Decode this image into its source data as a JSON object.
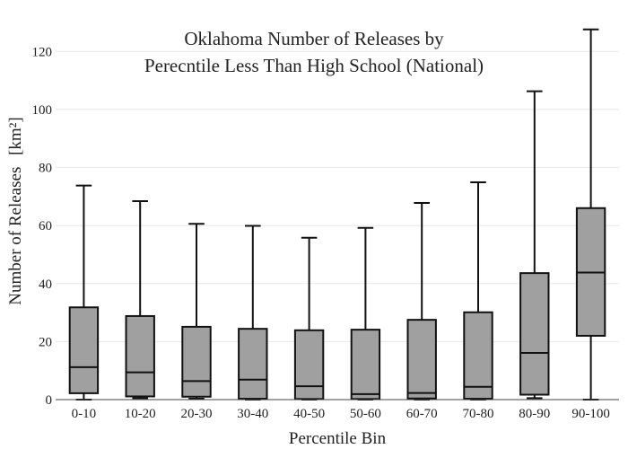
{
  "chart_data": {
    "type": "box",
    "title_lines": [
      "Oklahoma Number of Releases by",
      "Perecntile Less Than High School (National)"
    ],
    "xlabel": "Percentile Bin",
    "ylabel": "Number of Releases",
    "ylabel_unit": "[km²]",
    "ylim": [
      0,
      130
    ],
    "yticks": [
      0,
      20,
      40,
      60,
      80,
      100,
      120
    ],
    "grid": true,
    "box_color": "#a0a0a0",
    "line_color": "#111111",
    "categories": [
      "0-10",
      "10-20",
      "20-30",
      "30-40",
      "40-50",
      "50-60",
      "60-70",
      "70-80",
      "80-90",
      "90-100"
    ],
    "boxes": [
      {
        "min": 0,
        "q1": 2.2,
        "median": 11.2,
        "q3": 31.8,
        "max": 73.8
      },
      {
        "min": 0.5,
        "q1": 1.1,
        "median": 9.4,
        "q3": 28.8,
        "max": 68.4
      },
      {
        "min": 0.3,
        "q1": 1.0,
        "median": 6.4,
        "q3": 25.1,
        "max": 60.6
      },
      {
        "min": 0,
        "q1": 0.3,
        "median": 6.9,
        "q3": 24.4,
        "max": 59.9
      },
      {
        "min": 0,
        "q1": 0.2,
        "median": 4.6,
        "q3": 23.9,
        "max": 55.8
      },
      {
        "min": 0,
        "q1": 0.2,
        "median": 1.9,
        "q3": 24.1,
        "max": 59.2
      },
      {
        "min": 0,
        "q1": 0.4,
        "median": 2.3,
        "q3": 27.5,
        "max": 67.8
      },
      {
        "min": 0,
        "q1": 0.3,
        "median": 4.4,
        "q3": 30.1,
        "max": 74.9
      },
      {
        "min": 0.5,
        "q1": 1.7,
        "median": 16.1,
        "q3": 43.6,
        "max": 106.3
      },
      {
        "min": 0,
        "q1": 22.0,
        "median": 43.8,
        "q3": 66.0,
        "max": 127.6
      }
    ]
  }
}
